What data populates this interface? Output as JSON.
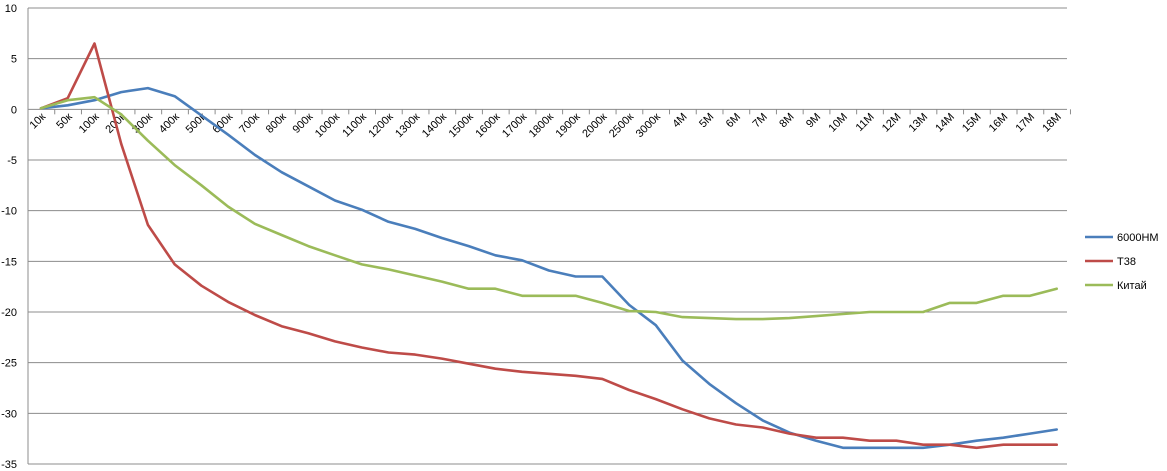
{
  "chart_data": {
    "type": "line",
    "title": "",
    "xlabel": "",
    "ylabel": "",
    "ylim": [
      -35,
      10
    ],
    "yticks": [
      10,
      5,
      0,
      -5,
      -10,
      -15,
      -20,
      -25,
      -30,
      -35
    ],
    "grid": true,
    "legend_position": "right",
    "categories": [
      "10к",
      "50к",
      "100к",
      "200к",
      "300к",
      "400к",
      "500к",
      "600к",
      "700к",
      "800к",
      "900к",
      "1000к",
      "1100к",
      "1200к",
      "1300к",
      "1400к",
      "1500к",
      "1600к",
      "1700к",
      "1800к",
      "1900к",
      "2000к",
      "2500к",
      "3000к",
      "4M",
      "5M",
      "6M",
      "7M",
      "8M",
      "9M",
      "10M",
      "11M",
      "12M",
      "13M",
      "14M",
      "15M",
      "16M",
      "17M",
      "18M"
    ],
    "series": [
      {
        "name": "6000HM",
        "color": "#4a7ebb",
        "values": [
          0.1,
          0.4,
          0.9,
          1.7,
          2.1,
          1.3,
          -0.6,
          -2.5,
          -4.5,
          -6.2,
          -7.6,
          -9.0,
          -9.9,
          -11.1,
          -11.8,
          -12.7,
          -13.5,
          -14.4,
          -14.9,
          -15.9,
          -16.5,
          -16.5,
          -19.3,
          -21.3,
          -24.8,
          -27.1,
          -29.0,
          -30.7,
          -31.9,
          -32.7,
          -33.4,
          -33.4,
          -33.4,
          -33.4,
          -33.1,
          -32.7,
          -32.4,
          -32.0,
          -31.6
        ]
      },
      {
        "name": "T38",
        "color": "#be4b48",
        "values": [
          0.1,
          1.1,
          6.5,
          -3.4,
          -11.4,
          -15.3,
          -17.4,
          -19.0,
          -20.3,
          -21.4,
          -22.1,
          -22.9,
          -23.5,
          -24.0,
          -24.2,
          -24.6,
          -25.1,
          -25.6,
          -25.9,
          -26.1,
          -26.3,
          -26.6,
          -27.7,
          -28.6,
          -29.6,
          -30.5,
          -31.1,
          -31.4,
          -32.0,
          -32.4,
          -32.4,
          -32.7,
          -32.7,
          -33.1,
          -33.1,
          -33.4,
          -33.1,
          -33.1,
          -33.1
        ]
      },
      {
        "name": "Китай",
        "color": "#9bbb59",
        "values": [
          0.1,
          0.9,
          1.2,
          -0.5,
          -3.1,
          -5.5,
          -7.5,
          -9.6,
          -11.3,
          -12.4,
          -13.5,
          -14.4,
          -15.3,
          -15.8,
          -16.4,
          -17.0,
          -17.7,
          -17.7,
          -18.4,
          -18.4,
          -18.4,
          -19.1,
          -19.9,
          -20.0,
          -20.5,
          -20.6,
          -20.7,
          -20.7,
          -20.6,
          -20.4,
          -20.2,
          -20.0,
          -20.0,
          -20.0,
          -19.1,
          -19.1,
          -18.4,
          -18.4,
          -17.7
        ]
      }
    ]
  }
}
